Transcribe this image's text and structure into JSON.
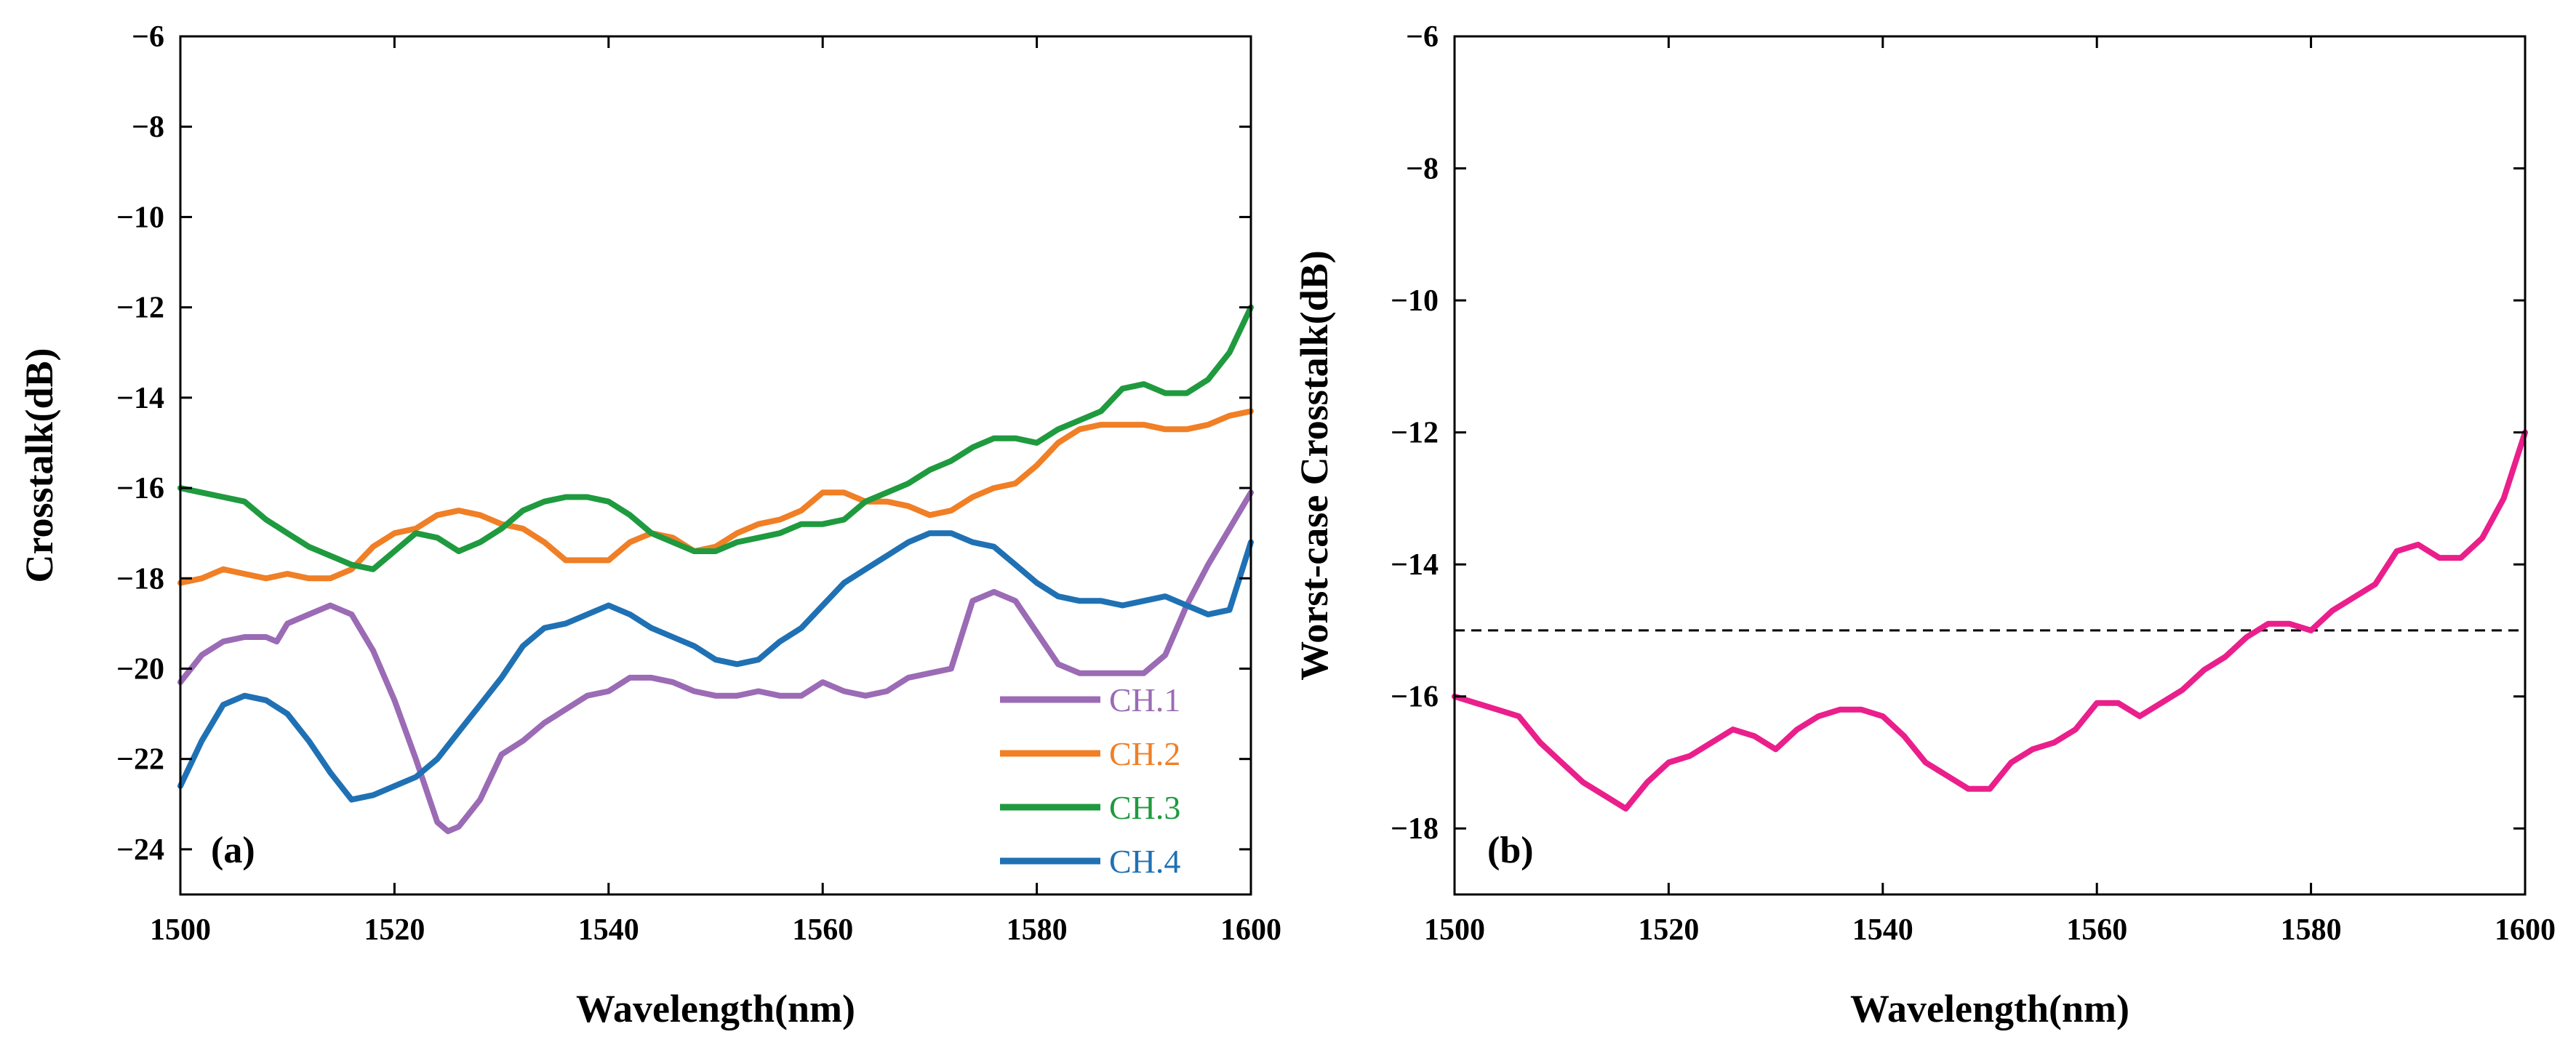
{
  "colors": {
    "ch1": "#9b6bb5",
    "ch2": "#f07f26",
    "ch3": "#1f9a3f",
    "ch4": "#1f71b4",
    "worst": "#ea1f8c",
    "threshold": "#000000"
  },
  "chart_data": [
    {
      "type": "line",
      "panel_label": "(a)",
      "title": "",
      "xlabel": "Wavelength(nm)",
      "ylabel": "Crosstalk(dB)",
      "xlim": [
        1500,
        1600
      ],
      "ylim": [
        -25,
        -6
      ],
      "xticks": [
        "1500",
        "1520",
        "1540",
        "1560",
        "1580",
        "1600"
      ],
      "yticks": [
        "-24",
        "-22",
        "-20",
        "-18",
        "-16",
        "-14",
        "-12",
        "-10",
        "-8",
        "-6"
      ],
      "legend_position": "bottom-right",
      "series": [
        {
          "name": "CH.1",
          "color_key": "ch1",
          "x": [
            1500,
            1502,
            1504,
            1506,
            1508,
            1509,
            1510,
            1512,
            1514,
            1516,
            1518,
            1520,
            1522,
            1524,
            1525,
            1526,
            1528,
            1530,
            1532,
            1534,
            1536,
            1538,
            1540,
            1542,
            1544,
            1546,
            1548,
            1550,
            1552,
            1554,
            1556,
            1558,
            1560,
            1562,
            1564,
            1566,
            1568,
            1570,
            1572,
            1574,
            1576,
            1578,
            1580,
            1582,
            1584,
            1586,
            1588,
            1590,
            1592,
            1594,
            1596,
            1598,
            1600
          ],
          "y": [
            -20.3,
            -19.7,
            -19.4,
            -19.3,
            -19.3,
            -19.4,
            -19.0,
            -18.8,
            -18.6,
            -18.8,
            -19.6,
            -20.7,
            -22.0,
            -23.4,
            -23.6,
            -23.5,
            -22.9,
            -21.9,
            -21.6,
            -21.2,
            -20.9,
            -20.6,
            -20.5,
            -20.2,
            -20.2,
            -20.3,
            -20.5,
            -20.6,
            -20.6,
            -20.5,
            -20.6,
            -20.6,
            -20.3,
            -20.5,
            -20.6,
            -20.5,
            -20.2,
            -20.1,
            -20.0,
            -18.5,
            -18.3,
            -18.5,
            -19.2,
            -19.9,
            -20.1,
            -20.1,
            -20.1,
            -20.1,
            -19.7,
            -18.6,
            -17.7,
            -16.9,
            -16.1
          ]
        },
        {
          "name": "CH.2",
          "color_key": "ch2",
          "x": [
            1500,
            1502,
            1504,
            1506,
            1508,
            1510,
            1512,
            1514,
            1516,
            1518,
            1520,
            1522,
            1524,
            1526,
            1528,
            1530,
            1532,
            1534,
            1536,
            1538,
            1540,
            1542,
            1544,
            1546,
            1548,
            1550,
            1552,
            1554,
            1556,
            1558,
            1560,
            1562,
            1564,
            1566,
            1568,
            1570,
            1572,
            1574,
            1576,
            1578,
            1580,
            1582,
            1584,
            1586,
            1588,
            1590,
            1592,
            1594,
            1596,
            1598,
            1600
          ],
          "y": [
            -18.1,
            -18.0,
            -17.8,
            -17.9,
            -18.0,
            -17.9,
            -18.0,
            -18.0,
            -17.8,
            -17.3,
            -17.0,
            -16.9,
            -16.6,
            -16.5,
            -16.6,
            -16.8,
            -16.9,
            -17.2,
            -17.6,
            -17.6,
            -17.6,
            -17.2,
            -17.0,
            -17.1,
            -17.4,
            -17.3,
            -17.0,
            -16.8,
            -16.7,
            -16.5,
            -16.1,
            -16.1,
            -16.3,
            -16.3,
            -16.4,
            -16.6,
            -16.5,
            -16.2,
            -16.0,
            -15.9,
            -15.5,
            -15.0,
            -14.7,
            -14.6,
            -14.6,
            -14.6,
            -14.7,
            -14.7,
            -14.6,
            -14.4,
            -14.3
          ]
        },
        {
          "name": "CH.3",
          "color_key": "ch3",
          "x": [
            1500,
            1502,
            1504,
            1506,
            1508,
            1510,
            1512,
            1514,
            1516,
            1518,
            1520,
            1522,
            1524,
            1526,
            1528,
            1530,
            1532,
            1534,
            1536,
            1538,
            1540,
            1542,
            1544,
            1546,
            1548,
            1550,
            1552,
            1554,
            1556,
            1558,
            1560,
            1562,
            1564,
            1566,
            1568,
            1570,
            1572,
            1574,
            1576,
            1578,
            1580,
            1582,
            1584,
            1586,
            1588,
            1590,
            1592,
            1594,
            1596,
            1598,
            1600
          ],
          "y": [
            -16.0,
            -16.1,
            -16.2,
            -16.3,
            -16.7,
            -17.0,
            -17.3,
            -17.5,
            -17.7,
            -17.8,
            -17.4,
            -17.0,
            -17.1,
            -17.4,
            -17.2,
            -16.9,
            -16.5,
            -16.3,
            -16.2,
            -16.2,
            -16.3,
            -16.6,
            -17.0,
            -17.2,
            -17.4,
            -17.4,
            -17.2,
            -17.1,
            -17.0,
            -16.8,
            -16.8,
            -16.7,
            -16.3,
            -16.1,
            -15.9,
            -15.6,
            -15.4,
            -15.1,
            -14.9,
            -14.9,
            -15.0,
            -14.7,
            -14.5,
            -14.3,
            -13.8,
            -13.7,
            -13.9,
            -13.9,
            -13.6,
            -13.0,
            -12.0
          ]
        },
        {
          "name": "CH.4",
          "color_key": "ch4",
          "x": [
            1500,
            1502,
            1504,
            1506,
            1508,
            1510,
            1512,
            1514,
            1516,
            1518,
            1520,
            1522,
            1524,
            1526,
            1528,
            1530,
            1532,
            1534,
            1536,
            1538,
            1540,
            1542,
            1544,
            1546,
            1548,
            1550,
            1552,
            1554,
            1556,
            1558,
            1560,
            1562,
            1564,
            1566,
            1568,
            1570,
            1572,
            1574,
            1576,
            1578,
            1580,
            1582,
            1584,
            1586,
            1588,
            1590,
            1592,
            1594,
            1596,
            1598,
            1600
          ],
          "y": [
            -22.6,
            -21.6,
            -20.8,
            -20.6,
            -20.7,
            -21.0,
            -21.6,
            -22.3,
            -22.9,
            -22.8,
            -22.6,
            -22.4,
            -22.0,
            -21.4,
            -20.8,
            -20.2,
            -19.5,
            -19.1,
            -19.0,
            -18.8,
            -18.6,
            -18.8,
            -19.1,
            -19.3,
            -19.5,
            -19.8,
            -19.9,
            -19.8,
            -19.4,
            -19.1,
            -18.6,
            -18.1,
            -17.8,
            -17.5,
            -17.2,
            -17.0,
            -17.0,
            -17.2,
            -17.3,
            -17.7,
            -18.1,
            -18.4,
            -18.5,
            -18.5,
            -18.6,
            -18.5,
            -18.4,
            -18.6,
            -18.8,
            -18.7,
            -17.2
          ]
        }
      ]
    },
    {
      "type": "line",
      "panel_label": "(b)",
      "title": "",
      "xlabel": "Wavelength(nm)",
      "ylabel": "Worst-case Crosstalk(dB)",
      "xlim": [
        1500,
        1600
      ],
      "ylim": [
        -19,
        -6
      ],
      "xticks": [
        "1500",
        "1520",
        "1540",
        "1560",
        "1580",
        "1600"
      ],
      "yticks": [
        "-18",
        "-16",
        "-14",
        "-12",
        "-10",
        "-8",
        "-6"
      ],
      "threshold_y": -15,
      "series": [
        {
          "name": "Worst-case",
          "color_key": "worst",
          "x": [
            1500,
            1502,
            1504,
            1506,
            1508,
            1510,
            1512,
            1514,
            1516,
            1518,
            1520,
            1522,
            1524,
            1526,
            1528,
            1530,
            1532,
            1534,
            1536,
            1538,
            1540,
            1542,
            1544,
            1546,
            1548,
            1550,
            1552,
            1554,
            1556,
            1558,
            1560,
            1562,
            1564,
            1566,
            1568,
            1570,
            1572,
            1574,
            1576,
            1578,
            1580,
            1582,
            1584,
            1586,
            1588,
            1590,
            1592,
            1594,
            1596,
            1598,
            1600
          ],
          "y": [
            -16.0,
            -16.1,
            -16.2,
            -16.3,
            -16.7,
            -17.0,
            -17.3,
            -17.5,
            -17.7,
            -17.3,
            -17.0,
            -16.9,
            -16.7,
            -16.5,
            -16.6,
            -16.8,
            -16.5,
            -16.3,
            -16.2,
            -16.2,
            -16.3,
            -16.6,
            -17.0,
            -17.2,
            -17.4,
            -17.4,
            -17.0,
            -16.8,
            -16.7,
            -16.5,
            -16.1,
            -16.1,
            -16.3,
            -16.1,
            -15.9,
            -15.6,
            -15.4,
            -15.1,
            -14.9,
            -14.9,
            -15.0,
            -14.7,
            -14.5,
            -14.3,
            -13.8,
            -13.7,
            -13.9,
            -13.9,
            -13.6,
            -13.0,
            -12.0
          ]
        }
      ]
    }
  ]
}
